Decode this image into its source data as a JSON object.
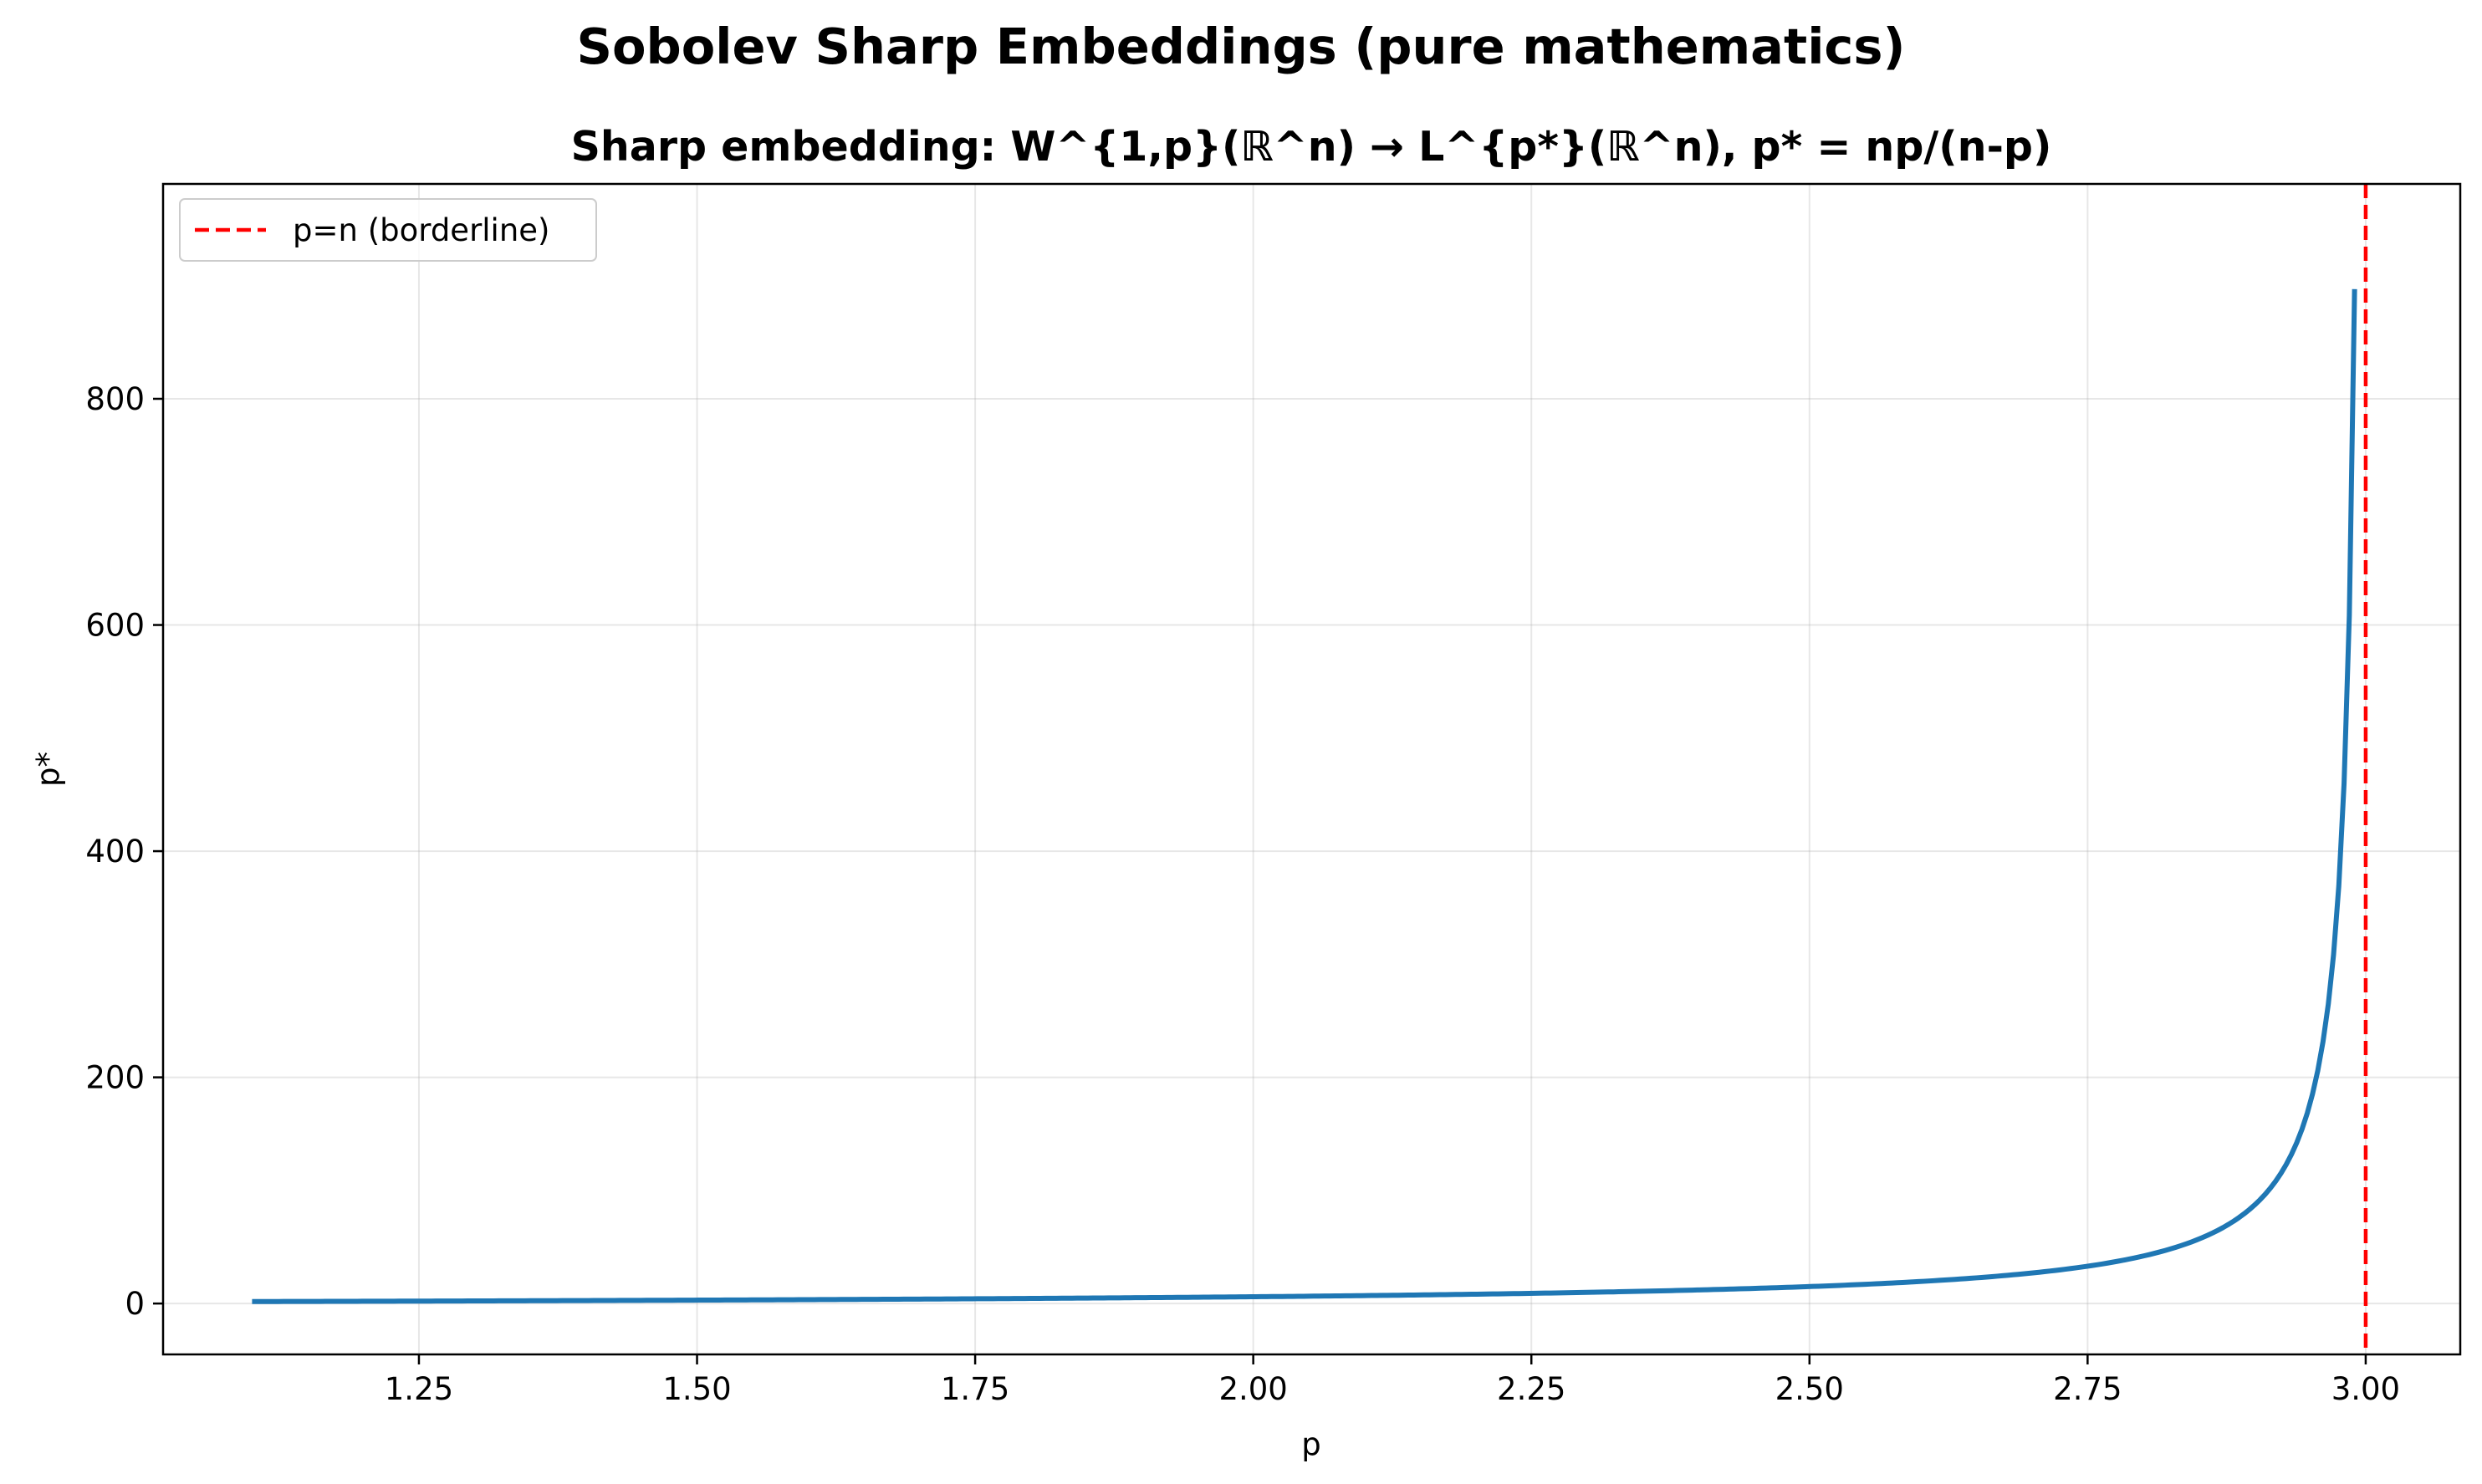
{
  "chart_data": {
    "type": "line",
    "suptitle": "Sobolev Sharp Embeddings (pure mathematics)",
    "title": "Sharp embedding: W^{1,p}(ℝ^n) → L^{p*}(ℝ^n), p* = np/(n-p)",
    "xlabel": "p",
    "ylabel": "p*",
    "xlim": [
      1.02,
      3.085
    ],
    "ylim": [
      -45,
      990
    ],
    "xticks": [
      1.25,
      1.5,
      1.75,
      2.0,
      2.25,
      2.5,
      2.75,
      3.0
    ],
    "xtick_labels": [
      "1.25",
      "1.50",
      "1.75",
      "2.00",
      "2.25",
      "2.50",
      "2.75",
      "3.00"
    ],
    "yticks": [
      0,
      200,
      400,
      600,
      800
    ],
    "ytick_labels": [
      "0",
      "200",
      "400",
      "600",
      "800"
    ],
    "grid": true,
    "n": 3,
    "x_start": 1.1,
    "x_end": 2.99,
    "series": [
      {
        "type": "line",
        "color": "#1f77b4",
        "x": [
          1.1,
          1.2,
          1.3,
          1.4,
          1.5,
          1.6,
          1.7,
          1.8,
          1.9,
          2.0,
          2.1,
          2.2,
          2.3,
          2.4,
          2.5,
          2.6,
          2.7,
          2.75,
          2.8,
          2.85,
          2.88,
          2.9,
          2.92,
          2.94,
          2.95,
          2.96,
          2.97,
          2.98,
          2.99
        ],
        "y": [
          1.74,
          2.0,
          2.29,
          2.63,
          3.0,
          3.43,
          3.92,
          4.5,
          5.18,
          6.0,
          7.0,
          8.25,
          9.86,
          12.0,
          15.0,
          19.5,
          27.0,
          33.0,
          42.0,
          57.0,
          72.0,
          87.0,
          109.5,
          147.0,
          177.0,
          222.0,
          297.0,
          447.0,
          897.0
        ]
      }
    ],
    "vline": {
      "x": 3.0,
      "color": "#ff0000",
      "style": "dashed",
      "name": "p=n (borderline)"
    },
    "legend": {
      "placement": "upper-left",
      "entries": [
        "p=n (borderline)"
      ]
    }
  }
}
